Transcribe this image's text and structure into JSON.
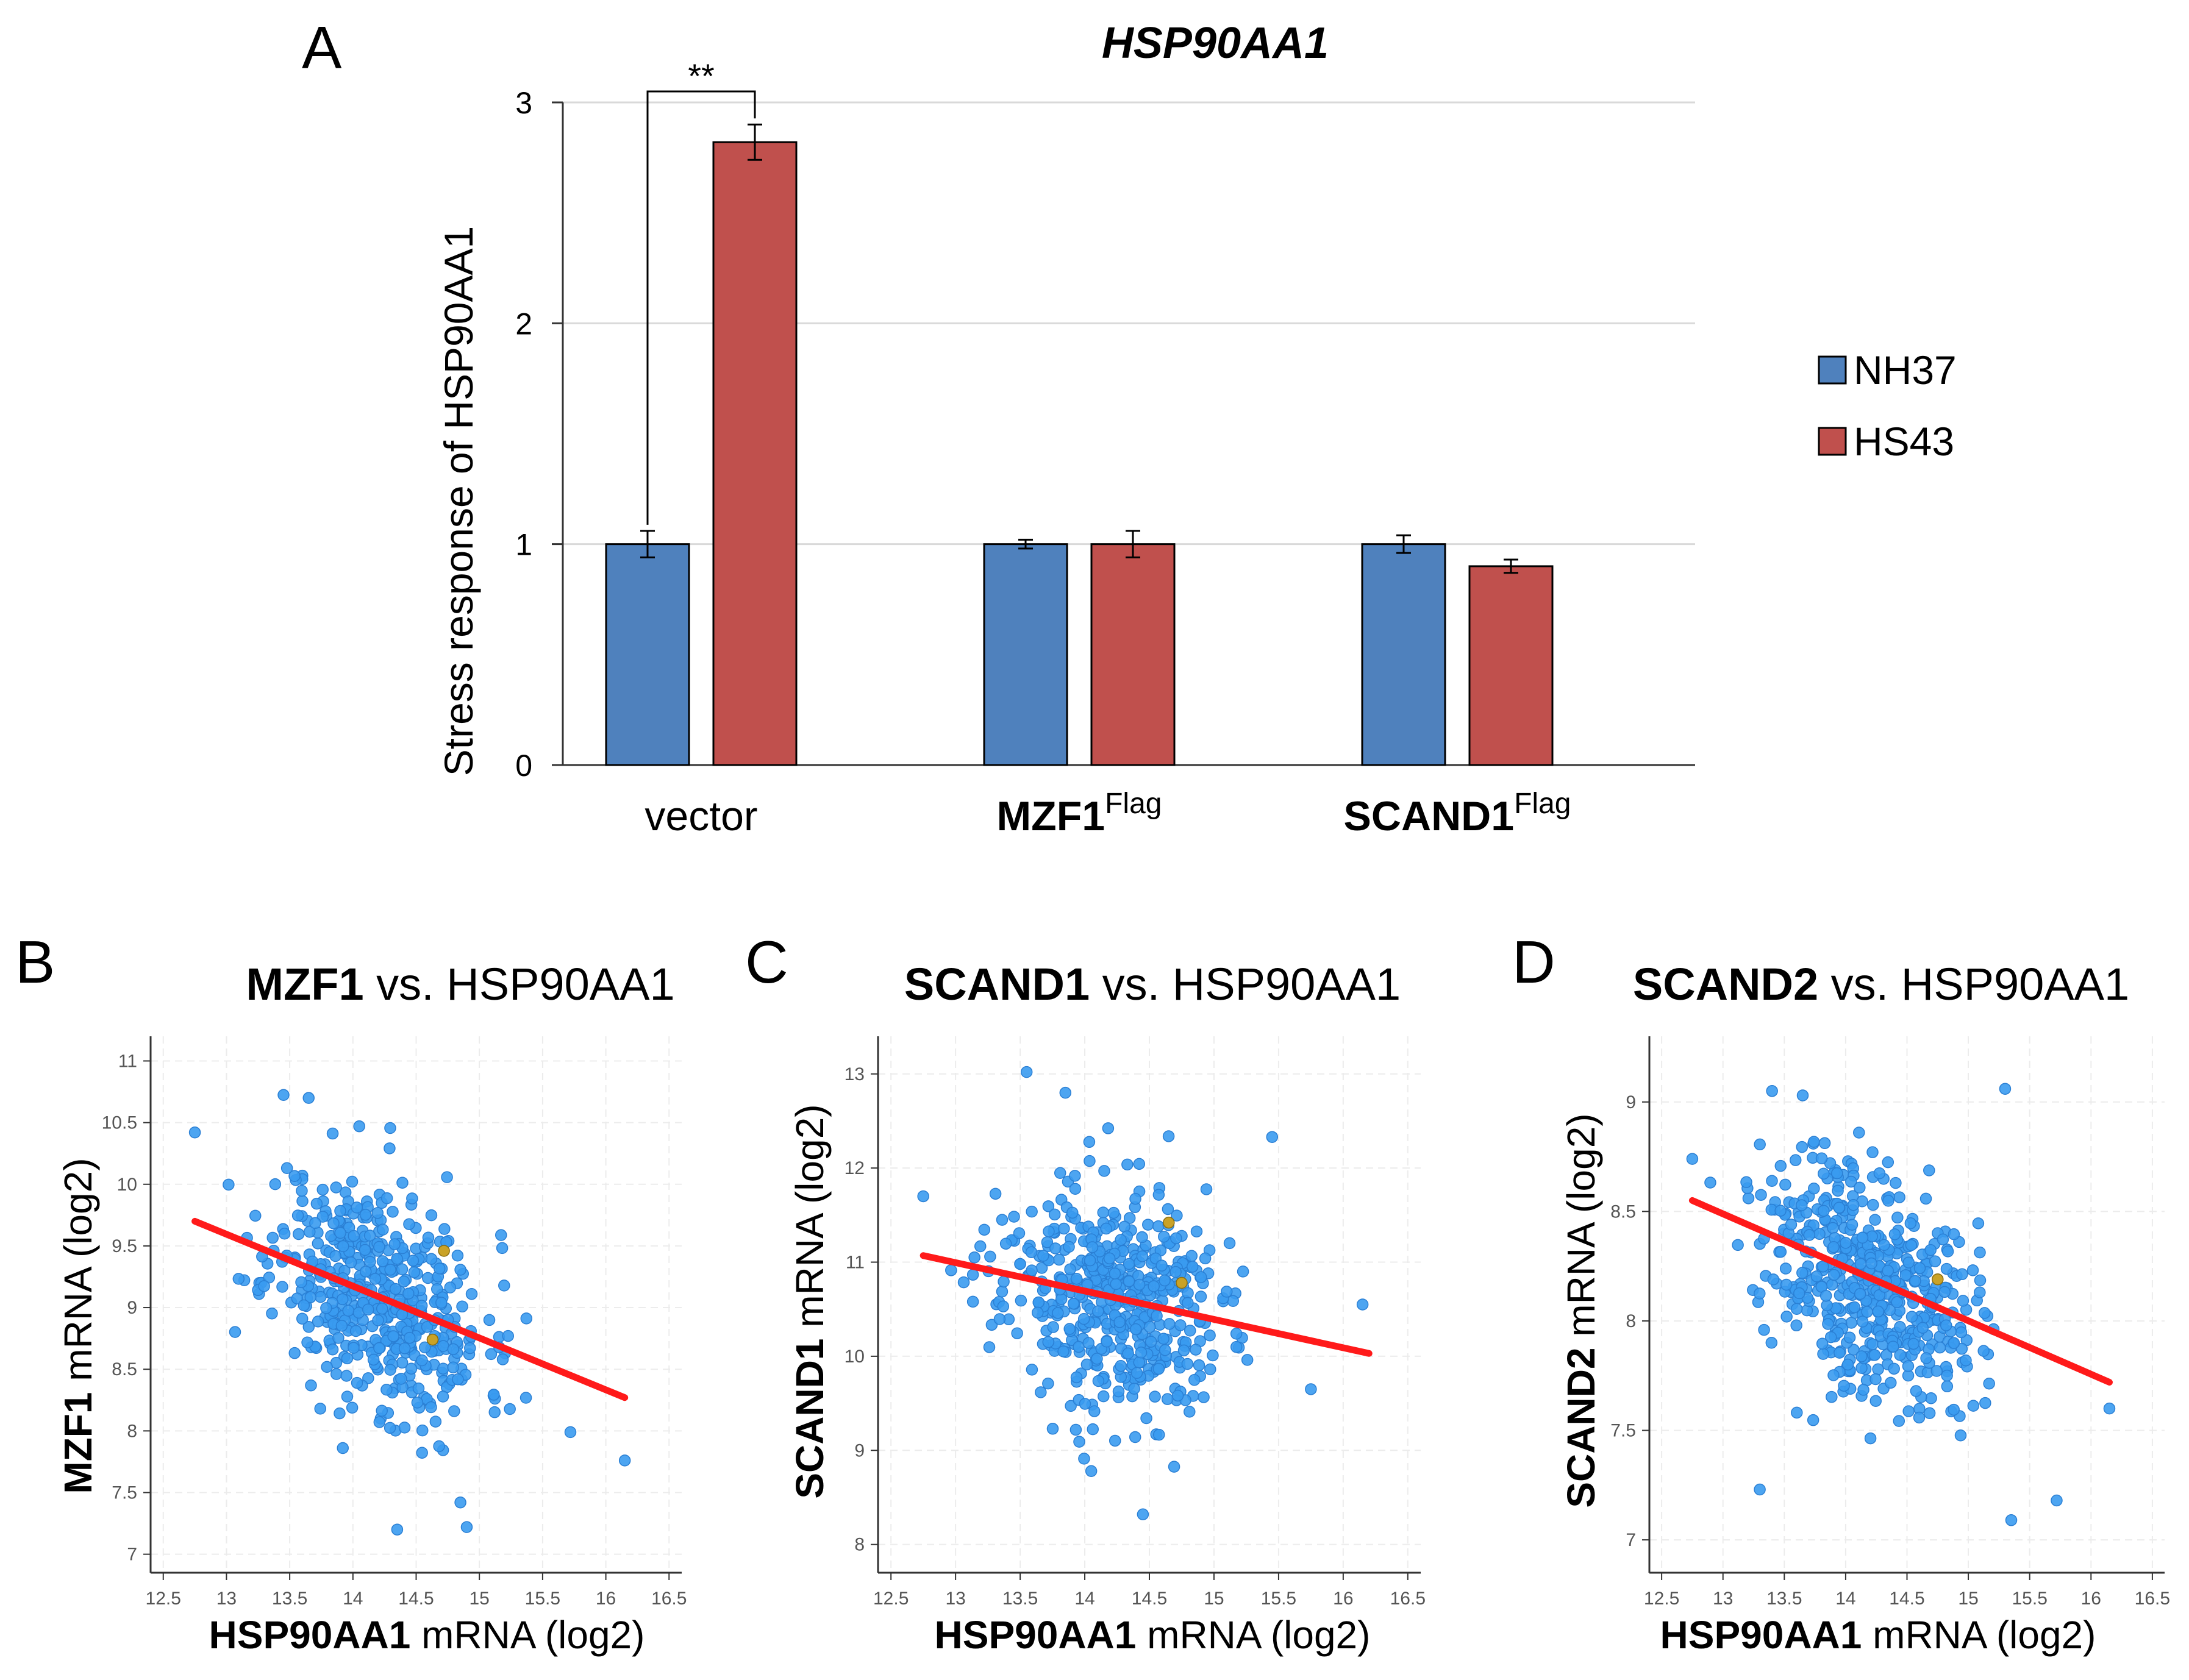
{
  "figure": {
    "panel_labels": {
      "a": "A",
      "b": "B",
      "c": "C",
      "d": "D"
    }
  },
  "colors": {
    "nh37": "#4f81bd",
    "hs43": "#c0504d",
    "scatter_point": "#3a9bf0",
    "highlight_point": "#c9a227",
    "regression": "#ff1a1a"
  },
  "chart_data": [
    {
      "panel": "A",
      "type": "bar",
      "title": "HSP90AA1",
      "ylabel": "Stress response of HSP90AA1",
      "xlabel": "",
      "ylim": [
        0,
        3
      ],
      "yticks": [
        "0",
        "1",
        "2",
        "3"
      ],
      "categories": [
        {
          "main": "vector",
          "sup": ""
        },
        {
          "main": "MZF1",
          "sup": "Flag"
        },
        {
          "main": "SCAND1",
          "sup": "Flag"
        }
      ],
      "series": [
        {
          "name": "NH37",
          "values": [
            1.0,
            1.0,
            1.0
          ],
          "errors": [
            0.06,
            0.02,
            0.04
          ]
        },
        {
          "name": "HS43",
          "values": [
            2.82,
            1.0,
            0.9
          ],
          "errors": [
            0.08,
            0.06,
            0.03
          ]
        }
      ],
      "significance": {
        "label": "**",
        "between": [
          "NH37",
          "HS43"
        ],
        "category": "vector"
      },
      "legend": "right"
    },
    {
      "panel": "B",
      "type": "scatter",
      "title_bold": "MZF1",
      "title_rest": " vs. HSP90AA1",
      "xlabel_bold": "HSP90AA1",
      "xlabel_rest": " mRNA (log2)",
      "ylabel_bold": "MZF1",
      "ylabel_rest": " mRNA (log2)",
      "xlim": [
        12.4,
        16.6
      ],
      "ylim": [
        6.85,
        11.2
      ],
      "xticks": [
        "12.5",
        "13",
        "13.5",
        "14",
        "14.5",
        "15",
        "15.5",
        "16",
        "16.5"
      ],
      "yticks": [
        "7",
        "7.5",
        "8",
        "8.5",
        "9",
        "9.5",
        "10",
        "10.5",
        "11"
      ],
      "regression": {
        "x": [
          12.75,
          16.15
        ],
        "y": [
          9.7,
          8.27
        ]
      },
      "n_points": 520,
      "center": [
        14.2,
        9.1
      ],
      "spread": [
        0.42,
        0.55
      ],
      "slope": -0.42,
      "seed": 11,
      "outliers": [
        [
          12.75,
          10.42
        ],
        [
          13.65,
          10.7
        ],
        [
          14.05,
          10.47
        ],
        [
          16.15,
          7.76
        ],
        [
          15.72,
          7.99
        ],
        [
          14.35,
          7.2
        ],
        [
          14.9,
          7.22
        ],
        [
          14.85,
          7.42
        ]
      ],
      "highlights": [
        [
          14.72,
          9.46
        ],
        [
          14.63,
          8.74
        ]
      ]
    },
    {
      "panel": "C",
      "type": "scatter",
      "title_bold": "SCAND1",
      "title_rest": " vs. HSP90AA1",
      "xlabel_bold": "HSP90AA1",
      "xlabel_rest": " mRNA (log2)",
      "ylabel_bold": "SCAND1",
      "ylabel_rest": " mRNA (log2)",
      "xlim": [
        12.4,
        16.6
      ],
      "ylim": [
        7.7,
        13.4
      ],
      "xticks": [
        "12.5",
        "13",
        "13.5",
        "14",
        "14.5",
        "15",
        "15.5",
        "16",
        "16.5"
      ],
      "yticks": [
        "8",
        "9",
        "10",
        "11",
        "12",
        "13"
      ],
      "regression": {
        "x": [
          12.75,
          16.2
        ],
        "y": [
          11.07,
          10.03
        ]
      },
      "n_points": 520,
      "center": [
        14.2,
        10.6
      ],
      "spread": [
        0.42,
        0.72
      ],
      "slope": -0.3,
      "seed": 23,
      "outliers": [
        [
          13.55,
          13.02
        ],
        [
          13.85,
          12.8
        ],
        [
          12.75,
          11.7
        ],
        [
          16.15,
          10.55
        ],
        [
          15.75,
          9.65
        ],
        [
          14.45,
          8.32
        ],
        [
          14.05,
          8.78
        ],
        [
          15.45,
          12.33
        ]
      ],
      "highlights": [
        [
          14.65,
          11.42
        ],
        [
          14.75,
          10.78
        ]
      ]
    },
    {
      "panel": "D",
      "type": "scatter",
      "title_bold": "SCAND2",
      "title_rest": " vs. HSP90AA1",
      "xlabel_bold": "HSP90AA1",
      "xlabel_rest": " mRNA (log2)",
      "ylabel_bold": "SCAND2",
      "ylabel_rest": " mRNA (log2)",
      "xlim": [
        12.4,
        16.6
      ],
      "ylim": [
        6.85,
        9.3
      ],
      "xticks": [
        "12.5",
        "13",
        "13.5",
        "14",
        "14.5",
        "15",
        "15.5",
        "16",
        "16.5"
      ],
      "yticks": [
        "7",
        "7.5",
        "8",
        "8.5",
        "9"
      ],
      "regression": {
        "x": [
          12.75,
          16.15
        ],
        "y": [
          8.55,
          7.72
        ]
      },
      "n_points": 520,
      "center": [
        14.2,
        8.2
      ],
      "spread": [
        0.42,
        0.32
      ],
      "slope": -0.25,
      "seed": 37,
      "outliers": [
        [
          13.4,
          9.05
        ],
        [
          13.65,
          9.03
        ],
        [
          12.75,
          8.74
        ],
        [
          16.15,
          7.6
        ],
        [
          15.72,
          7.18
        ],
        [
          13.3,
          7.23
        ],
        [
          15.35,
          7.09
        ],
        [
          15.3,
          9.06
        ]
      ],
      "highlights": [
        [
          14.75,
          8.19
        ]
      ]
    }
  ]
}
